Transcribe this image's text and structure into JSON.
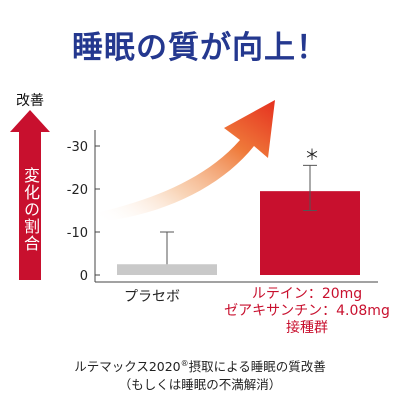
{
  "headline": "睡眠の質が向上！",
  "improvement_label": "改善",
  "arrow_text": "変化の割合",
  "chart_data": {
    "type": "bar",
    "categories": [
      "プラセボ",
      "ルテイン：20mg ゼアキサンチン：4.08mg 接種群"
    ],
    "values": [
      -2.5,
      -19.5
    ],
    "error_upper": [
      -10,
      -25.5
    ],
    "error_lower": [
      null,
      -15
    ],
    "yticks": [
      0,
      -10,
      -20,
      -30
    ],
    "ylim": [
      0,
      -35
    ],
    "inverted_axis": true,
    "significance_marker": "＊",
    "colors": {
      "placebo": "#c9c9c9",
      "treatment": "#c8102e",
      "arrow": "#c8102e"
    }
  },
  "labels": {
    "placebo": "プラセボ",
    "treatment_line1": "ルテイン：20mg",
    "treatment_line2": "ゼアキサンチン：4.08mg",
    "treatment_line3": "接種群"
  },
  "footnote": {
    "line1_prefix": "ルテマックス2020",
    "line1_reg": "®",
    "line1_suffix": "摂取による睡眠の質改善",
    "line2": "（もしくは睡眠の不満解消）"
  }
}
